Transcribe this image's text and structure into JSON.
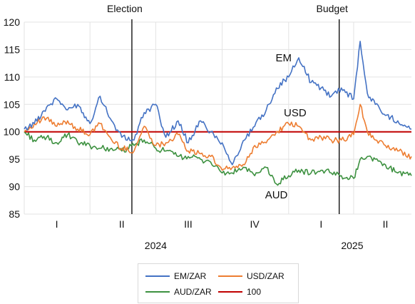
{
  "chart_data": {
    "type": "line",
    "ylim": [
      85,
      120
    ],
    "yticks": [
      85,
      90,
      95,
      100,
      105,
      110,
      115,
      120
    ],
    "xlim": [
      "2024-01-01",
      "2025-06-20"
    ],
    "quarter_labels": [
      {
        "label": "I",
        "date": "2024-02-15"
      },
      {
        "label": "II",
        "date": "2024-05-15"
      },
      {
        "label": "III",
        "date": "2024-08-15"
      },
      {
        "label": "IV",
        "date": "2024-11-15"
      },
      {
        "label": "I",
        "date": "2025-02-15"
      },
      {
        "label": "II",
        "date": "2025-05-15"
      }
    ],
    "year_labels": [
      {
        "label": "2024",
        "date": "2024-07-01"
      },
      {
        "label": "2025",
        "date": "2025-03-30"
      }
    ],
    "events": [
      {
        "label": "Election",
        "date": "2024-05-29"
      },
      {
        "label": "Budget",
        "date": "2025-03-12"
      }
    ],
    "vertical_gridlines": [
      "2024-01-01",
      "2024-04-01",
      "2024-07-01",
      "2024-10-01",
      "2025-01-01",
      "2025-04-01"
    ],
    "series": [
      {
        "name": "EM/ZAR",
        "color": "#4472c4",
        "points": [
          [
            "2024-01-01",
            100.5
          ],
          [
            "2024-01-15",
            101.5
          ],
          [
            "2024-02-01",
            104.5
          ],
          [
            "2024-02-15",
            106.0
          ],
          [
            "2024-03-01",
            104.0
          ],
          [
            "2024-03-15",
            105.0
          ],
          [
            "2024-04-01",
            101.5
          ],
          [
            "2024-04-15",
            106.5
          ],
          [
            "2024-05-01",
            102.0
          ],
          [
            "2024-05-15",
            99.0
          ],
          [
            "2024-06-01",
            98.5
          ],
          [
            "2024-06-15",
            103.5
          ],
          [
            "2024-07-01",
            105.0
          ],
          [
            "2024-07-15",
            99.0
          ],
          [
            "2024-08-01",
            102.0
          ],
          [
            "2024-08-15",
            98.0
          ],
          [
            "2024-09-01",
            102.0
          ],
          [
            "2024-09-15",
            100.0
          ],
          [
            "2024-10-01",
            98.0
          ],
          [
            "2024-10-15",
            94.0
          ],
          [
            "2024-11-01",
            98.5
          ],
          [
            "2024-11-15",
            101.0
          ],
          [
            "2024-12-01",
            104.0
          ],
          [
            "2024-12-15",
            108.0
          ],
          [
            "2025-01-01",
            110.0
          ],
          [
            "2025-01-15",
            113.5
          ],
          [
            "2025-02-01",
            109.0
          ],
          [
            "2025-02-15",
            108.0
          ],
          [
            "2025-03-01",
            106.5
          ],
          [
            "2025-03-15",
            108.0
          ],
          [
            "2025-04-01",
            106.0
          ],
          [
            "2025-04-10",
            116.5
          ],
          [
            "2025-04-20",
            107.0
          ],
          [
            "2025-05-01",
            105.0
          ],
          [
            "2025-05-15",
            103.0
          ],
          [
            "2025-06-01",
            102.0
          ],
          [
            "2025-06-20",
            100.5
          ]
        ]
      },
      {
        "name": "USD/ZAR",
        "color": "#ed7d31",
        "points": [
          [
            "2024-01-01",
            100.0
          ],
          [
            "2024-01-15",
            101.5
          ],
          [
            "2024-02-01",
            102.5
          ],
          [
            "2024-02-15",
            101.0
          ],
          [
            "2024-03-01",
            102.0
          ],
          [
            "2024-03-15",
            100.5
          ],
          [
            "2024-04-01",
            99.5
          ],
          [
            "2024-04-15",
            101.5
          ],
          [
            "2024-05-01",
            98.5
          ],
          [
            "2024-05-15",
            97.0
          ],
          [
            "2024-06-01",
            96.5
          ],
          [
            "2024-06-15",
            101.0
          ],
          [
            "2024-07-01",
            97.5
          ],
          [
            "2024-07-15",
            98.0
          ],
          [
            "2024-08-01",
            99.5
          ],
          [
            "2024-08-15",
            96.5
          ],
          [
            "2024-09-01",
            96.0
          ],
          [
            "2024-09-15",
            95.5
          ],
          [
            "2024-10-01",
            93.0
          ],
          [
            "2024-10-15",
            93.5
          ],
          [
            "2024-11-01",
            94.0
          ],
          [
            "2024-11-15",
            97.5
          ],
          [
            "2024-12-01",
            98.0
          ],
          [
            "2024-12-15",
            100.0
          ],
          [
            "2025-01-01",
            101.5
          ],
          [
            "2025-01-15",
            101.0
          ],
          [
            "2025-02-01",
            98.5
          ],
          [
            "2025-02-15",
            99.0
          ],
          [
            "2025-03-01",
            98.5
          ],
          [
            "2025-03-15",
            98.5
          ],
          [
            "2025-04-01",
            99.5
          ],
          [
            "2025-04-10",
            105.0
          ],
          [
            "2025-04-20",
            100.0
          ],
          [
            "2025-05-01",
            98.5
          ],
          [
            "2025-05-15",
            97.5
          ],
          [
            "2025-06-01",
            96.5
          ],
          [
            "2025-06-20",
            95.5
          ]
        ]
      },
      {
        "name": "AUD/ZAR",
        "color": "#3d9140",
        "points": [
          [
            "2024-01-01",
            100.0
          ],
          [
            "2024-01-15",
            98.5
          ],
          [
            "2024-02-01",
            99.0
          ],
          [
            "2024-02-15",
            98.0
          ],
          [
            "2024-03-01",
            99.5
          ],
          [
            "2024-03-15",
            98.0
          ],
          [
            "2024-04-01",
            97.5
          ],
          [
            "2024-04-15",
            97.0
          ],
          [
            "2024-05-01",
            97.0
          ],
          [
            "2024-05-15",
            96.5
          ],
          [
            "2024-06-01",
            97.5
          ],
          [
            "2024-06-15",
            98.5
          ],
          [
            "2024-07-01",
            97.0
          ],
          [
            "2024-07-15",
            96.5
          ],
          [
            "2024-08-01",
            95.5
          ],
          [
            "2024-08-15",
            95.5
          ],
          [
            "2024-09-01",
            95.0
          ],
          [
            "2024-09-15",
            94.5
          ],
          [
            "2024-10-01",
            92.5
          ],
          [
            "2024-10-15",
            92.5
          ],
          [
            "2024-11-01",
            93.5
          ],
          [
            "2024-11-15",
            92.0
          ],
          [
            "2024-12-01",
            93.5
          ],
          [
            "2024-12-15",
            90.5
          ],
          [
            "2025-01-01",
            92.0
          ],
          [
            "2025-01-15",
            93.0
          ],
          [
            "2025-02-01",
            92.5
          ],
          [
            "2025-02-15",
            93.0
          ],
          [
            "2025-03-01",
            92.5
          ],
          [
            "2025-03-15",
            92.0
          ],
          [
            "2025-04-01",
            91.5
          ],
          [
            "2025-04-10",
            95.0
          ],
          [
            "2025-04-20",
            95.5
          ],
          [
            "2025-05-01",
            95.0
          ],
          [
            "2025-05-15",
            94.0
          ],
          [
            "2025-06-01",
            92.5
          ],
          [
            "2025-06-20",
            92.0
          ]
        ]
      },
      {
        "name": "100",
        "color": "#c00000",
        "points": [
          [
            "2024-01-01",
            100
          ],
          [
            "2025-06-20",
            100
          ]
        ]
      }
    ],
    "annotations": [
      {
        "text": "EM",
        "x": "2024-12-25",
        "y": 113.5
      },
      {
        "text": "USD",
        "x": "2025-01-10",
        "y": 103.5
      },
      {
        "text": "AUD",
        "x": "2024-12-15",
        "y": 88.5
      }
    ],
    "legend": {
      "placement": "bottom",
      "entries": [
        "EM/ZAR",
        "USD/ZAR",
        "AUD/ZAR",
        "100"
      ]
    }
  }
}
